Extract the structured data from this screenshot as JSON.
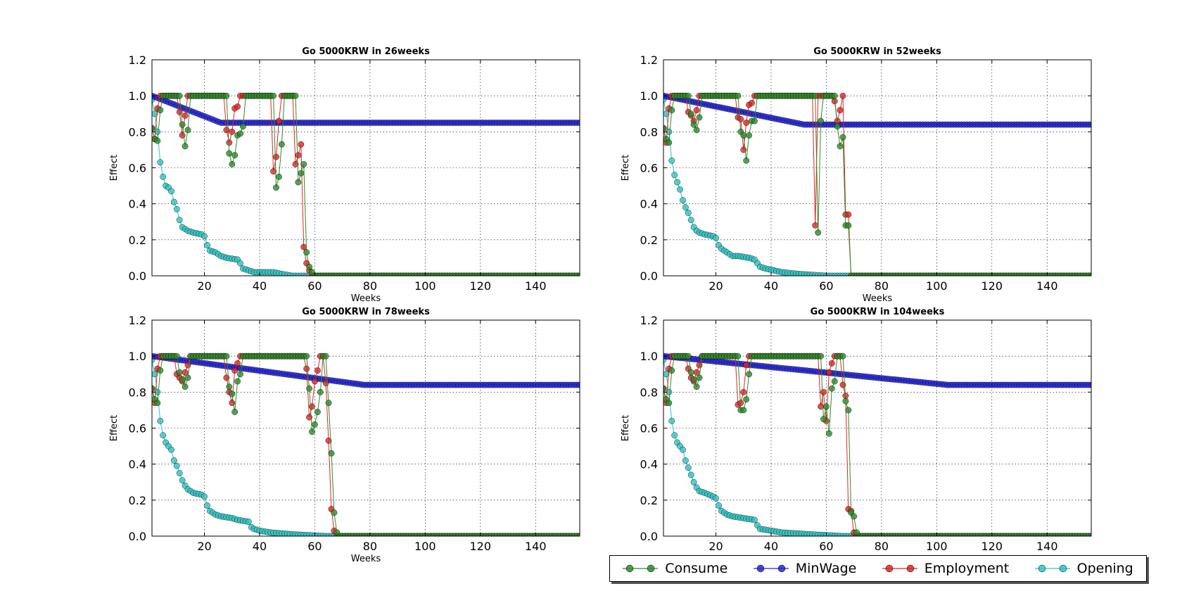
{
  "colors": {
    "consume": "#2a8c2a",
    "minwage": "#2626d9",
    "employment": "#e02424",
    "opening": "#2ec4c4"
  },
  "legend": {
    "entries": [
      {
        "label": "Consume",
        "key": "consume"
      },
      {
        "label": "MinWage",
        "key": "minwage"
      },
      {
        "label": "Employment",
        "key": "employment"
      },
      {
        "label": "Opening",
        "key": "opening"
      }
    ]
  },
  "chart_data": [
    {
      "type": "line",
      "title": "Go 5000KRW in 26weeks",
      "xlabel": "Weeks",
      "ylabel": "Effect",
      "xlim": [
        1,
        156
      ],
      "ylim": [
        0.0,
        1.2
      ],
      "xticks": [
        20,
        40,
        60,
        80,
        100,
        120,
        140
      ],
      "yticks": [
        "0.0",
        "0.2",
        "0.4",
        "0.6",
        "0.8",
        "1.0",
        "1.2"
      ],
      "grid": true,
      "minwage": {
        "start": 1.0,
        "target": 0.85,
        "reach_week": 26
      },
      "employment_dips": [
        [
          1,
          0.82
        ],
        [
          2,
          0.76
        ],
        [
          3,
          0.93
        ],
        [
          11,
          0.91
        ],
        [
          12,
          0.78
        ],
        [
          13,
          0.89
        ],
        [
          28,
          0.81
        ],
        [
          29,
          0.74
        ],
        [
          30,
          0.8
        ],
        [
          31,
          0.93
        ],
        [
          32,
          0.94
        ],
        [
          45,
          0.58
        ],
        [
          46,
          0.66
        ],
        [
          47,
          0.86
        ],
        [
          53,
          0.62
        ],
        [
          54,
          0.67
        ],
        [
          55,
          0.73
        ],
        [
          56,
          0.16
        ],
        [
          57,
          0.07
        ],
        [
          58,
          0.03
        ]
      ],
      "employment_end": 59,
      "consume_pts": [
        [
          1,
          0.82
        ],
        [
          2,
          0.76
        ],
        [
          3,
          0.75
        ],
        [
          4,
          0.92
        ],
        [
          12,
          0.84
        ],
        [
          13,
          0.72
        ],
        [
          14,
          0.81
        ],
        [
          29,
          0.68
        ],
        [
          30,
          0.62
        ],
        [
          31,
          0.67
        ],
        [
          32,
          0.78
        ],
        [
          33,
          0.79
        ],
        [
          34,
          0.83
        ],
        [
          46,
          0.49
        ],
        [
          47,
          0.55
        ],
        [
          48,
          0.73
        ],
        [
          54,
          0.52
        ],
        [
          55,
          0.57
        ],
        [
          56,
          0.62
        ],
        [
          57,
          0.13
        ],
        [
          58,
          0.05
        ],
        [
          59,
          0.02
        ]
      ],
      "consume_end": 60,
      "opening_pts": [
        [
          1,
          0.98
        ],
        [
          2,
          0.9
        ],
        [
          3,
          0.8
        ],
        [
          4,
          0.63
        ],
        [
          5,
          0.55
        ],
        [
          6,
          0.5
        ],
        [
          7,
          0.49
        ],
        [
          8,
          0.47
        ],
        [
          9,
          0.41
        ],
        [
          10,
          0.37
        ],
        [
          11,
          0.31
        ],
        [
          12,
          0.27
        ],
        [
          13,
          0.26
        ],
        [
          14,
          0.25
        ],
        [
          16,
          0.24
        ],
        [
          19,
          0.23
        ],
        [
          20,
          0.22
        ],
        [
          21,
          0.17
        ],
        [
          22,
          0.14
        ],
        [
          24,
          0.13
        ],
        [
          26,
          0.11
        ],
        [
          28,
          0.1
        ],
        [
          32,
          0.09
        ],
        [
          33,
          0.07
        ],
        [
          34,
          0.04
        ],
        [
          36,
          0.03
        ],
        [
          38,
          0.02
        ],
        [
          45,
          0.02
        ],
        [
          48,
          0.01
        ],
        [
          52,
          0.0
        ],
        [
          156,
          0.0
        ]
      ]
    },
    {
      "type": "line",
      "title": "Go 5000KRW in 52weeks",
      "xlabel": "Weeks",
      "ylabel": "Effect",
      "xlim": [
        1,
        156
      ],
      "ylim": [
        0.0,
        1.2
      ],
      "xticks": [
        20,
        40,
        60,
        80,
        100,
        120,
        140
      ],
      "yticks": [
        "0.0",
        "0.2",
        "0.4",
        "0.6",
        "0.8",
        "1.0",
        "1.2"
      ],
      "grid": true,
      "minwage": {
        "start": 1.0,
        "target": 0.84,
        "reach_week": 52
      },
      "employment_dips": [
        [
          1,
          0.82
        ],
        [
          2,
          0.74
        ],
        [
          3,
          0.93
        ],
        [
          10,
          0.91
        ],
        [
          11,
          0.89
        ],
        [
          12,
          0.86
        ],
        [
          13,
          0.92
        ],
        [
          28,
          0.88
        ],
        [
          29,
          0.87
        ],
        [
          30,
          0.7
        ],
        [
          31,
          0.85
        ],
        [
          32,
          0.95
        ],
        [
          33,
          0.96
        ],
        [
          56,
          0.28
        ],
        [
          57,
          1.0
        ],
        [
          63,
          0.97
        ],
        [
          64,
          0.86
        ],
        [
          65,
          0.92
        ],
        [
          66,
          1.0
        ],
        [
          67,
          0.34
        ],
        [
          68,
          0.34
        ]
      ],
      "employment_end": 69,
      "consume_pts": [
        [
          1,
          0.82
        ],
        [
          2,
          0.76
        ],
        [
          3,
          0.74
        ],
        [
          4,
          0.92
        ],
        [
          11,
          0.9
        ],
        [
          12,
          0.84
        ],
        [
          13,
          0.81
        ],
        [
          14,
          0.88
        ],
        [
          29,
          0.8
        ],
        [
          30,
          0.78
        ],
        [
          31,
          0.64
        ],
        [
          32,
          0.78
        ],
        [
          33,
          0.86
        ],
        [
          34,
          0.86
        ],
        [
          57,
          0.24
        ],
        [
          58,
          0.86
        ],
        [
          64,
          0.83
        ],
        [
          65,
          0.72
        ],
        [
          66,
          0.77
        ],
        [
          67,
          0.28
        ],
        [
          68,
          0.28
        ]
      ],
      "consume_end": 69,
      "opening_pts": [
        [
          1,
          0.98
        ],
        [
          2,
          0.9
        ],
        [
          3,
          0.8
        ],
        [
          4,
          0.64
        ],
        [
          5,
          0.56
        ],
        [
          6,
          0.52
        ],
        [
          7,
          0.48
        ],
        [
          8,
          0.42
        ],
        [
          9,
          0.38
        ],
        [
          10,
          0.35
        ],
        [
          11,
          0.31
        ],
        [
          12,
          0.27
        ],
        [
          13,
          0.25
        ],
        [
          14,
          0.24
        ],
        [
          16,
          0.23
        ],
        [
          19,
          0.22
        ],
        [
          20,
          0.21
        ],
        [
          21,
          0.17
        ],
        [
          22,
          0.15
        ],
        [
          24,
          0.13
        ],
        [
          26,
          0.11
        ],
        [
          28,
          0.11
        ],
        [
          32,
          0.1
        ],
        [
          34,
          0.09
        ],
        [
          35,
          0.07
        ],
        [
          36,
          0.05
        ],
        [
          38,
          0.04
        ],
        [
          44,
          0.02
        ],
        [
          50,
          0.01
        ],
        [
          60,
          0.0
        ],
        [
          156,
          0.0
        ]
      ]
    },
    {
      "type": "line",
      "title": "Go 5000KRW in 78weeks",
      "xlabel": "Weeks",
      "ylabel": "Effect",
      "xlim": [
        1,
        156
      ],
      "ylim": [
        0.0,
        1.2
      ],
      "xticks": [
        20,
        40,
        60,
        80,
        100,
        120,
        140
      ],
      "yticks": [
        "0.0",
        "0.2",
        "0.4",
        "0.6",
        "0.8",
        "1.0",
        "1.2"
      ],
      "grid": true,
      "minwage": {
        "start": 1.0,
        "target": 0.84,
        "reach_week": 78
      },
      "employment_dips": [
        [
          1,
          0.82
        ],
        [
          2,
          0.74
        ],
        [
          3,
          0.93
        ],
        [
          10,
          0.9
        ],
        [
          11,
          0.88
        ],
        [
          12,
          0.86
        ],
        [
          13,
          0.91
        ],
        [
          14,
          0.95
        ],
        [
          28,
          0.88
        ],
        [
          29,
          0.8
        ],
        [
          30,
          0.74
        ],
        [
          31,
          0.92
        ],
        [
          32,
          0.96
        ],
        [
          57,
          0.93
        ],
        [
          58,
          0.66
        ],
        [
          59,
          0.72
        ],
        [
          60,
          0.86
        ],
        [
          61,
          0.92
        ],
        [
          62,
          1.0
        ],
        [
          64,
          0.85
        ],
        [
          65,
          0.53
        ],
        [
          66,
          0.15
        ],
        [
          67,
          0.03
        ]
      ],
      "employment_end": 68,
      "consume_pts": [
        [
          1,
          0.82
        ],
        [
          2,
          0.76
        ],
        [
          3,
          0.74
        ],
        [
          4,
          0.92
        ],
        [
          11,
          0.91
        ],
        [
          12,
          0.87
        ],
        [
          13,
          0.83
        ],
        [
          14,
          0.88
        ],
        [
          29,
          0.83
        ],
        [
          30,
          0.79
        ],
        [
          31,
          0.69
        ],
        [
          32,
          0.86
        ],
        [
          33,
          0.9
        ],
        [
          58,
          0.82
        ],
        [
          59,
          0.58
        ],
        [
          60,
          0.62
        ],
        [
          61,
          0.69
        ],
        [
          62,
          0.8
        ],
        [
          65,
          0.74
        ],
        [
          66,
          0.46
        ],
        [
          67,
          0.13
        ],
        [
          68,
          0.02
        ]
      ],
      "consume_end": 69,
      "opening_pts": [
        [
          1,
          0.98
        ],
        [
          2,
          0.9
        ],
        [
          3,
          0.8
        ],
        [
          4,
          0.64
        ],
        [
          5,
          0.56
        ],
        [
          6,
          0.52
        ],
        [
          7,
          0.5
        ],
        [
          8,
          0.48
        ],
        [
          9,
          0.42
        ],
        [
          10,
          0.39
        ],
        [
          11,
          0.35
        ],
        [
          12,
          0.31
        ],
        [
          13,
          0.28
        ],
        [
          14,
          0.26
        ],
        [
          16,
          0.24
        ],
        [
          19,
          0.23
        ],
        [
          20,
          0.22
        ],
        [
          21,
          0.17
        ],
        [
          22,
          0.14
        ],
        [
          24,
          0.12
        ],
        [
          26,
          0.11
        ],
        [
          30,
          0.1
        ],
        [
          32,
          0.09
        ],
        [
          36,
          0.08
        ],
        [
          37,
          0.05
        ],
        [
          38,
          0.04
        ],
        [
          40,
          0.03
        ],
        [
          44,
          0.02
        ],
        [
          52,
          0.01
        ],
        [
          64,
          0.0
        ],
        [
          156,
          0.0
        ]
      ]
    },
    {
      "type": "line",
      "title": "Go 5000KRW in 104weeks",
      "xlabel": "",
      "ylabel": "Effect",
      "xlim": [
        1,
        156
      ],
      "ylim": [
        0.0,
        1.2
      ],
      "xticks": [
        20,
        40,
        60,
        80,
        100,
        120,
        140
      ],
      "yticks": [
        "0.0",
        "0.2",
        "0.4",
        "0.6",
        "0.8",
        "1.0",
        "1.2"
      ],
      "grid": true,
      "minwage": {
        "start": 1.0,
        "target": 0.84,
        "reach_week": 104
      },
      "employment_dips": [
        [
          1,
          0.82
        ],
        [
          2,
          0.74
        ],
        [
          3,
          0.93
        ],
        [
          10,
          0.93
        ],
        [
          11,
          0.88
        ],
        [
          12,
          0.86
        ],
        [
          13,
          0.91
        ],
        [
          14,
          0.95
        ],
        [
          28,
          0.73
        ],
        [
          29,
          0.74
        ],
        [
          30,
          0.8
        ],
        [
          31,
          0.95
        ],
        [
          58,
          0.72
        ],
        [
          59,
          0.8
        ],
        [
          60,
          0.64
        ],
        [
          61,
          0.91
        ],
        [
          62,
          0.96
        ],
        [
          63,
          1.0
        ],
        [
          66,
          0.84
        ],
        [
          67,
          0.78
        ],
        [
          68,
          0.15
        ],
        [
          69,
          0.14
        ],
        [
          70,
          0.02
        ]
      ],
      "employment_end": 71,
      "consume_pts": [
        [
          1,
          0.82
        ],
        [
          2,
          0.76
        ],
        [
          3,
          0.74
        ],
        [
          4,
          0.92
        ],
        [
          11,
          0.91
        ],
        [
          12,
          0.87
        ],
        [
          13,
          0.83
        ],
        [
          14,
          0.88
        ],
        [
          29,
          0.7
        ],
        [
          30,
          0.7
        ],
        [
          31,
          0.76
        ],
        [
          32,
          0.9
        ],
        [
          59,
          0.65
        ],
        [
          60,
          0.72
        ],
        [
          61,
          0.57
        ],
        [
          62,
          0.82
        ],
        [
          63,
          0.86
        ],
        [
          67,
          0.75
        ],
        [
          68,
          0.7
        ],
        [
          69,
          0.13
        ],
        [
          70,
          0.11
        ],
        [
          71,
          0.02
        ]
      ],
      "consume_end": 72,
      "opening_pts": [
        [
          1,
          0.98
        ],
        [
          2,
          0.9
        ],
        [
          3,
          0.8
        ],
        [
          4,
          0.64
        ],
        [
          5,
          0.56
        ],
        [
          6,
          0.52
        ],
        [
          7,
          0.5
        ],
        [
          8,
          0.48
        ],
        [
          9,
          0.42
        ],
        [
          10,
          0.38
        ],
        [
          11,
          0.34
        ],
        [
          12,
          0.3
        ],
        [
          13,
          0.27
        ],
        [
          14,
          0.25
        ],
        [
          16,
          0.24
        ],
        [
          19,
          0.22
        ],
        [
          20,
          0.21
        ],
        [
          21,
          0.17
        ],
        [
          22,
          0.14
        ],
        [
          24,
          0.12
        ],
        [
          26,
          0.11
        ],
        [
          30,
          0.1
        ],
        [
          34,
          0.09
        ],
        [
          35,
          0.06
        ],
        [
          36,
          0.04
        ],
        [
          40,
          0.03
        ],
        [
          44,
          0.02
        ],
        [
          54,
          0.01
        ],
        [
          66,
          0.0
        ],
        [
          156,
          0.0
        ]
      ]
    }
  ]
}
